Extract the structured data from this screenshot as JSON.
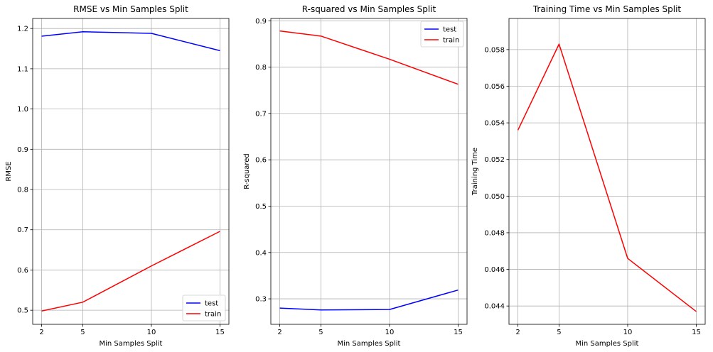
{
  "colors": {
    "test": "#0000ff",
    "train": "#ff0000",
    "grid": "#b0b0b0",
    "legend_border": "#cccccc"
  },
  "chart_data": [
    {
      "type": "line",
      "title": "RMSE vs Min Samples Split",
      "xlabel": "Min Samples Split",
      "ylabel": "RMSE",
      "x": [
        2,
        5,
        10,
        15
      ],
      "xlim": [
        1.35,
        15.65
      ],
      "ylim": [
        0.465,
        1.225
      ],
      "xticks": [
        2,
        5,
        10,
        15
      ],
      "yticks": [
        0.5,
        0.6,
        0.7,
        0.8,
        0.9,
        1.0,
        1.1,
        1.2
      ],
      "ytick_decimals": 1,
      "grid": true,
      "legend": "lower-right",
      "series": [
        {
          "name": "test",
          "color": "#0000ff",
          "values": [
            1.181,
            1.192,
            1.188,
            1.145
          ]
        },
        {
          "name": "train",
          "color": "#ff0000",
          "values": [
            0.498,
            0.52,
            0.61,
            0.696
          ]
        }
      ]
    },
    {
      "type": "line",
      "title": "R-squared vs Min Samples Split",
      "xlabel": "Min Samples Split",
      "ylabel": "R-squared",
      "x": [
        2,
        5,
        10,
        15
      ],
      "xlim": [
        1.35,
        15.65
      ],
      "ylim": [
        0.245,
        0.905
      ],
      "xticks": [
        2,
        5,
        10,
        15
      ],
      "yticks": [
        0.3,
        0.4,
        0.5,
        0.6,
        0.7,
        0.8,
        0.9
      ],
      "ytick_decimals": 1,
      "grid": true,
      "legend": "upper-right",
      "series": [
        {
          "name": "test",
          "color": "#0000ff",
          "values": [
            0.28,
            0.276,
            0.277,
            0.319
          ]
        },
        {
          "name": "train",
          "color": "#ff0000",
          "values": [
            0.878,
            0.867,
            0.817,
            0.763
          ]
        }
      ]
    },
    {
      "type": "line",
      "title": "Training Time vs Min Samples Split",
      "xlabel": "Min Samples Split",
      "ylabel": "Training Time",
      "x": [
        2,
        5,
        10,
        15
      ],
      "xlim": [
        1.35,
        15.65
      ],
      "ylim": [
        0.043,
        0.0597
      ],
      "xticks": [
        2,
        5,
        10,
        15
      ],
      "yticks": [
        0.044,
        0.046,
        0.048,
        0.05,
        0.052,
        0.054,
        0.056,
        0.058
      ],
      "ytick_decimals": 3,
      "grid": true,
      "series": [
        {
          "color": "#ff0000",
          "values": [
            0.0536,
            0.0583,
            0.0466,
            0.0437
          ]
        }
      ]
    }
  ]
}
